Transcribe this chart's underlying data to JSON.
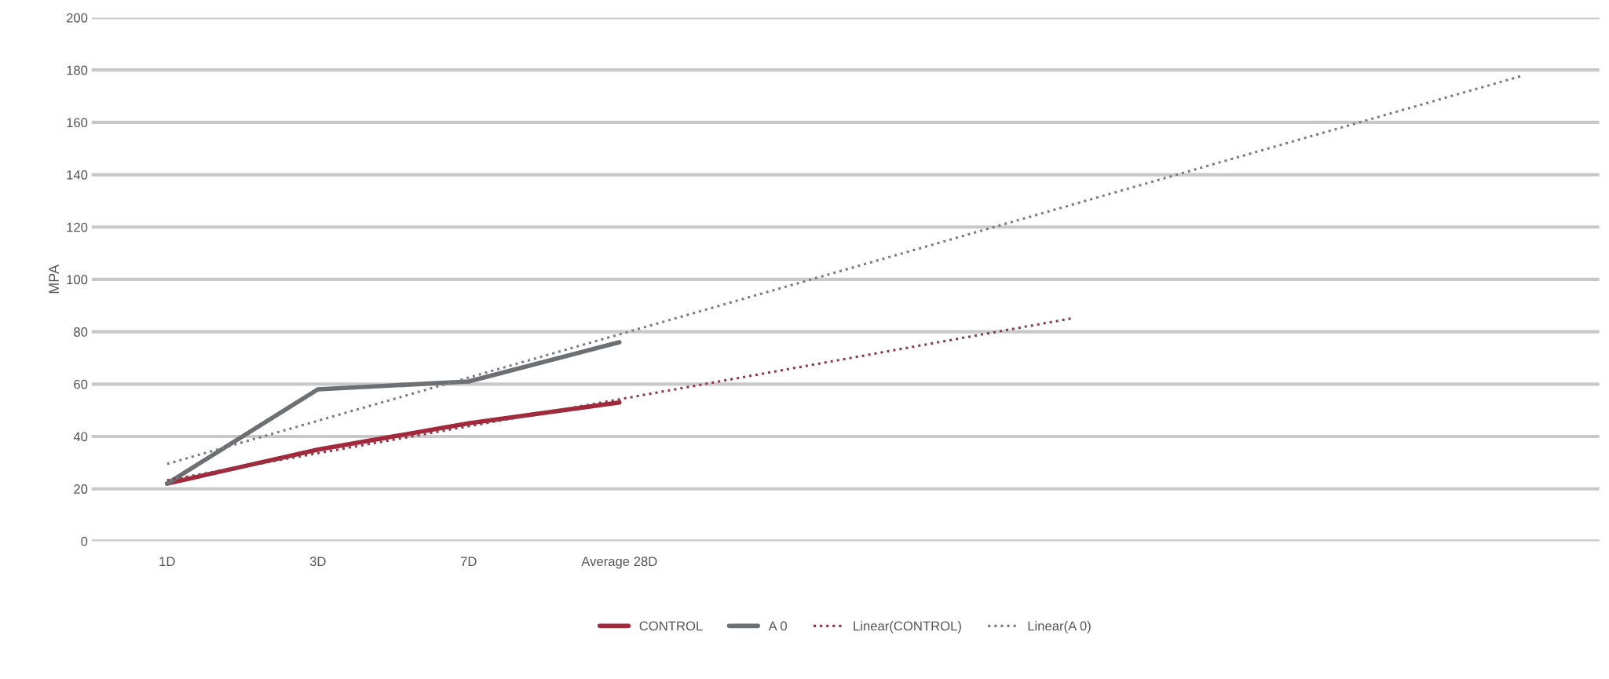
{
  "chart_data": {
    "type": "line",
    "ylabel": "MPA",
    "categories": [
      "1D",
      "3D",
      "7D",
      "Average 28D",
      null,
      null,
      null,
      null,
      null,
      null
    ],
    "series": [
      {
        "name": "CONTROL",
        "color": "#a3283b",
        "values": [
          22,
          35,
          45,
          53,
          null,
          null,
          null,
          null,
          null,
          null
        ]
      },
      {
        "name": "A 0",
        "color": "#6d7073",
        "values": [
          22,
          58,
          61,
          76,
          null,
          null,
          null,
          null,
          null,
          null
        ]
      },
      {
        "name": "Linear(CONTROL)",
        "color": "#8c3b45",
        "line_style": "dotted",
        "values": [
          23.3,
          33.6,
          43.9,
          54.2,
          64.5,
          74.8,
          85.1,
          null,
          null,
          null
        ]
      },
      {
        "name": "Linear(A 0)",
        "color": "#7a7c80",
        "line_style": "dotted",
        "values": [
          29.5,
          46,
          62.5,
          79,
          95.5,
          112,
          128.5,
          145,
          161.5,
          178
        ]
      }
    ],
    "ylim": [
      0,
      200
    ],
    "yticks": [
      0,
      20,
      40,
      60,
      80,
      100,
      120,
      140,
      160,
      180,
      200
    ],
    "grid": "y",
    "legend": "bottom",
    "marker": "none"
  }
}
